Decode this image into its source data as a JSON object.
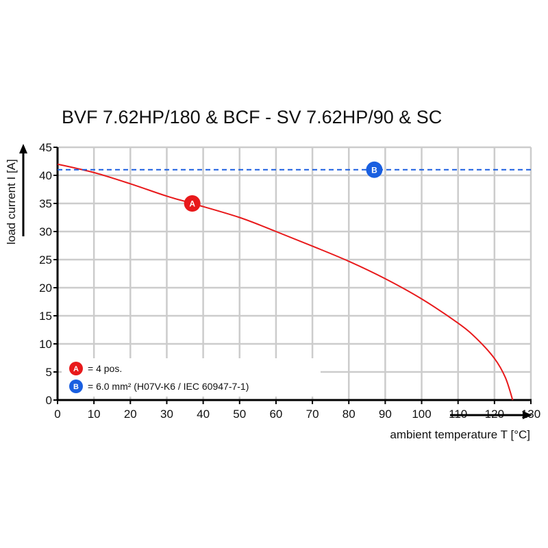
{
  "chart_data": {
    "type": "line",
    "title": "BVF 7.62HP/180 & BCF - SV 7.62HP/90 & SC",
    "xlabel": "ambient temperature T [°C]",
    "ylabel": "load current I [A]",
    "xlim": [
      0,
      130
    ],
    "ylim": [
      0,
      45
    ],
    "xticks": [
      0,
      10,
      20,
      30,
      40,
      50,
      60,
      70,
      80,
      90,
      100,
      110,
      120,
      130
    ],
    "yticks": [
      0,
      5,
      10,
      15,
      20,
      25,
      30,
      35,
      40,
      45
    ],
    "grid": true,
    "series": [
      {
        "marker_label": "A",
        "color": "#e8191b",
        "style": "solid",
        "x": [
          0,
          10,
          20,
          30,
          37,
          50,
          60,
          70,
          80,
          90,
          100,
          110,
          115,
          120,
          123,
          125
        ],
        "y": [
          42,
          40.5,
          38.5,
          36.3,
          35,
          32.5,
          30,
          27.4,
          24.7,
          21.6,
          18,
          13.7,
          11,
          7.4,
          4,
          0
        ],
        "marker_at": [
          37,
          35
        ]
      },
      {
        "marker_label": "B",
        "color": "#1a5fe0",
        "style": "dashed",
        "x": [
          0,
          130
        ],
        "y": [
          41,
          41
        ],
        "marker_at": [
          87,
          41
        ]
      }
    ],
    "legend": {
      "placement": "bottom-left",
      "entries": [
        {
          "marker": "A",
          "color": "#e8191b",
          "text": "= 4 pos."
        },
        {
          "marker": "B",
          "color": "#1a5fe0",
          "text": "= 6.0 mm² (H07V-K6 / IEC 60947-7-1)"
        }
      ]
    }
  }
}
